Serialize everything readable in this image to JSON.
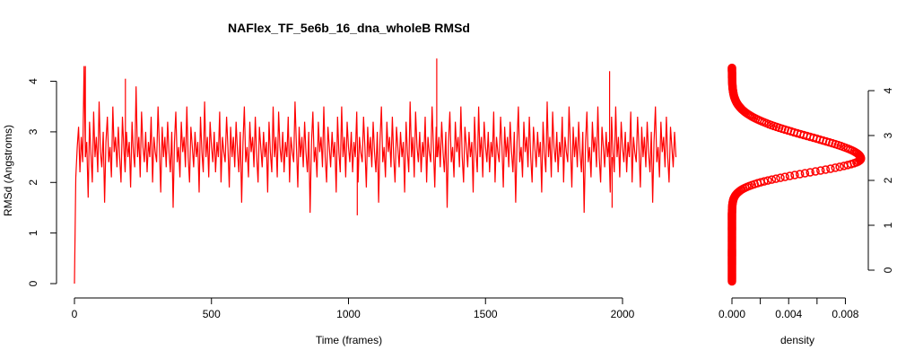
{
  "colors": {
    "series": "#ff0000",
    "axis": "#000000",
    "background": "#ffffff"
  },
  "chart_data": [
    {
      "type": "line",
      "title": "NAFlex_TF_5e6b_16_dna_wholeB RMSd",
      "xlabel": "Time (frames)",
      "ylabel": "RMSd (Angstroms)",
      "xlim": [
        0,
        2000
      ],
      "ylim": [
        0,
        4.4
      ],
      "xticks": [
        0,
        500,
        1000,
        1500,
        2000
      ],
      "xtick_labels": [
        "0",
        "500",
        "1000",
        "1500",
        "2000"
      ],
      "yticks": [
        0,
        1,
        2,
        3,
        4
      ],
      "ytick_labels": [
        "0",
        "1",
        "2",
        "3",
        "4"
      ],
      "grid": false,
      "series": [
        {
          "color": "#ff0000",
          "x_start": 0,
          "x_step": 5,
          "values": [
            0.0,
            2.1,
            2.7,
            3.1,
            2.2,
            2.9,
            2.4,
            4.3,
            2.5,
            2.8,
            1.7,
            3.2,
            2.6,
            2.0,
            3.4,
            2.5,
            2.9,
            2.2,
            3.6,
            2.6,
            2.3,
            3.0,
            1.6,
            2.8,
            3.3,
            2.4,
            2.7,
            2.1,
            3.5,
            2.6,
            2.9,
            2.3,
            3.1,
            2.5,
            2.0,
            3.3,
            2.7,
            2.2,
            3.0,
            2.5,
            2.8,
            1.9,
            3.2,
            2.6,
            2.3,
            3.9,
            2.5,
            2.9,
            2.1,
            3.4,
            2.7,
            2.4,
            3.0,
            2.2,
            2.8,
            2.5,
            3.3,
            2.0,
            2.9,
            2.6,
            2.4,
            3.5,
            2.7,
            1.8,
            3.1,
            2.5,
            2.9,
            2.3,
            3.2,
            2.6,
            2.2,
            3.0,
            1.5,
            2.8,
            3.4,
            2.4,
            2.7,
            2.1,
            3.2,
            2.6,
            2.9,
            2.3,
            3.5,
            2.5,
            2.0,
            3.1,
            2.7,
            2.3,
            3.0,
            2.5,
            2.8,
            1.8,
            3.3,
            2.6,
            2.2,
            3.6,
            2.5,
            2.9,
            2.1,
            3.2,
            2.7,
            2.4,
            3.0,
            2.2,
            2.8,
            2.5,
            3.4,
            2.0,
            2.9,
            2.6,
            2.4,
            3.3,
            2.7,
            1.9,
            3.1,
            2.5,
            2.9,
            2.3,
            3.2,
            2.6,
            2.2,
            3.0,
            1.6,
            2.8,
            3.5,
            2.4,
            2.7,
            2.1,
            3.2,
            2.6,
            2.9,
            2.3,
            3.3,
            2.5,
            2.0,
            3.1,
            2.7,
            2.3,
            3.0,
            2.5,
            2.8,
            1.8,
            3.2,
            2.6,
            2.2,
            3.5,
            2.5,
            2.9,
            2.1,
            3.4,
            2.7,
            2.4,
            3.0,
            2.2,
            2.8,
            2.5,
            3.3,
            2.0,
            2.9,
            2.6,
            2.4,
            3.6,
            2.7,
            1.9,
            3.1,
            2.5,
            2.9,
            2.3,
            3.2,
            2.6,
            2.2,
            3.0,
            1.4,
            2.8,
            3.4,
            2.4,
            2.7,
            2.1,
            3.2,
            2.6,
            2.9,
            2.3,
            3.5,
            2.5,
            2.0,
            3.1,
            2.7,
            2.3,
            3.0,
            2.5,
            2.8,
            1.8,
            3.3,
            2.6,
            2.2,
            3.5,
            2.5,
            2.9,
            2.1,
            3.2,
            2.7,
            2.4,
            3.0,
            2.2,
            2.8,
            2.5,
            3.4,
            2.0,
            2.9,
            2.6,
            2.4,
            3.3,
            2.7,
            1.9,
            3.1,
            2.5,
            2.9,
            2.3,
            3.2,
            2.6,
            2.2,
            3.0,
            1.6,
            2.8,
            3.5,
            2.4,
            2.7,
            2.1,
            3.2,
            2.6,
            2.9,
            2.3,
            3.3,
            2.5,
            2.0,
            3.1,
            2.7,
            2.3,
            3.0,
            2.5,
            2.8,
            1.8,
            3.2,
            2.6,
            2.2,
            3.6,
            2.5,
            2.9,
            2.1,
            3.4,
            2.7,
            2.4,
            3.0,
            2.2,
            2.8,
            2.5,
            3.3,
            2.0,
            2.9,
            2.6,
            2.4,
            3.5,
            2.7,
            1.9,
            3.1,
            2.5,
            2.9,
            2.3,
            3.2,
            2.6,
            2.2,
            3.0,
            1.5,
            2.8,
            3.4,
            2.4,
            2.7,
            2.1,
            3.2,
            2.6,
            2.9,
            2.3,
            3.5,
            2.5,
            2.0,
            3.1,
            2.7,
            2.3,
            3.0,
            2.5,
            2.8,
            1.8,
            3.3,
            2.6,
            2.2,
            3.5,
            2.5,
            2.9,
            2.1,
            3.2,
            2.7,
            2.4,
            3.0,
            2.2,
            2.8,
            2.5,
            3.4,
            2.0,
            2.9,
            2.6,
            2.4,
            3.3,
            2.7,
            1.9,
            3.1,
            2.5,
            2.9,
            2.3,
            3.2,
            2.6,
            2.2,
            3.0,
            1.6,
            2.8,
            3.5,
            2.4,
            2.7,
            2.1,
            3.2,
            2.6,
            2.9,
            2.3,
            3.3,
            2.5,
            2.0,
            3.1,
            2.7,
            2.3,
            3.0,
            2.5,
            2.8,
            1.8,
            3.2,
            2.6,
            2.2,
            3.6,
            2.5,
            2.9,
            2.1,
            3.4,
            2.7,
            2.4,
            3.0,
            2.2,
            2.8,
            2.5,
            3.3,
            2.0,
            2.9,
            2.6,
            2.4,
            3.5,
            2.7,
            1.9,
            3.1,
            2.5,
            2.9,
            2.3,
            3.2,
            2.6,
            2.2,
            3.0,
            1.4,
            2.8,
            3.4,
            2.4,
            2.7,
            2.1,
            3.2,
            2.6,
            2.9,
            2.3,
            3.5,
            2.5,
            2.0,
            3.1,
            2.7,
            2.3,
            3.0,
            2.5,
            2.8,
            1.8,
            3.3,
            2.6,
            2.2,
            3.5,
            2.5,
            2.9,
            2.1,
            3.2,
            2.7,
            2.4,
            3.0,
            2.2,
            2.8,
            2.5,
            3.4,
            2.0,
            2.9,
            2.6,
            2.4,
            3.3,
            2.7,
            1.9,
            3.1,
            2.5,
            2.9,
            2.3,
            3.2,
            2.6,
            2.2,
            3.0,
            1.6,
            2.8,
            3.5,
            2.4,
            2.7,
            2.1,
            3.2,
            2.6,
            2.9,
            2.3,
            3.3,
            2.5,
            2.0,
            3.1,
            2.7,
            2.3,
            3.0,
            2.5
          ]
        }
      ],
      "spikes": [
        {
          "x": 40,
          "y": 4.3
        },
        {
          "x": 186,
          "y": 4.05
        },
        {
          "x": 1032,
          "y": 1.35
        },
        {
          "x": 1322,
          "y": 4.45
        },
        {
          "x": 1953,
          "y": 4.2
        },
        {
          "x": 1962,
          "y": 1.5
        }
      ]
    },
    {
      "type": "scatter",
      "xlabel": "density",
      "ylabel": "",
      "xlim": [
        0,
        0.0093
      ],
      "ylim": [
        -0.3,
        4.6
      ],
      "xticks": [
        0,
        0.002,
        0.004,
        0.006,
        0.008
      ],
      "xtick_labels": [
        "0.000",
        "",
        "0.004",
        "",
        "0.008"
      ],
      "yticks": [
        0,
        1,
        2,
        3,
        4
      ],
      "ytick_labels": [
        "0",
        "1",
        "2",
        "3",
        "4"
      ],
      "grid": false,
      "series": [
        {
          "color": "#ff0000",
          "marker": "circle-open",
          "y_range": [
            -0.25,
            4.45
          ],
          "mode": 2.45,
          "peak_density": 0.0091,
          "sd_below": 0.3,
          "sd_above": 0.48
        }
      ]
    }
  ]
}
